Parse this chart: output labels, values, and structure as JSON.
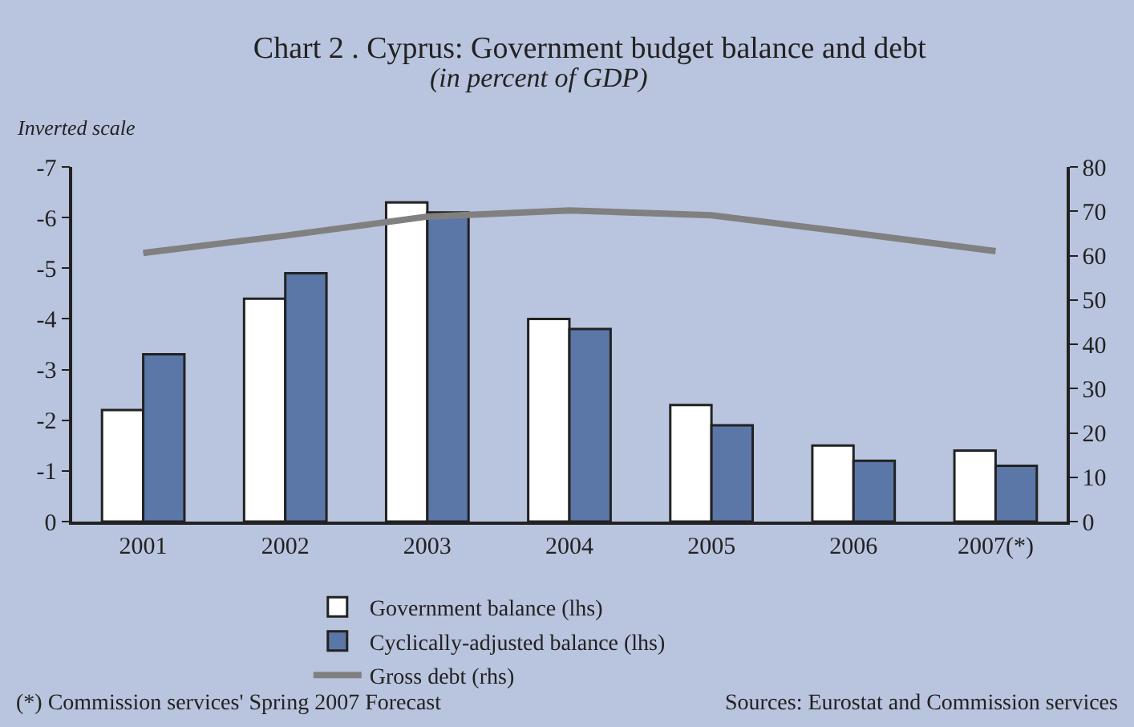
{
  "chart_data": {
    "type": "bar",
    "title": "Chart 2 . Cyprus: Government budget balance and debt",
    "subtitle": "(in percent of GDP)",
    "ylabel": "Inverted scale",
    "categories": [
      "2001",
      "2002",
      "2003",
      "2004",
      "2005",
      "2006",
      "2007(*)"
    ],
    "series": [
      {
        "name": "Government balance (lhs)",
        "color": "#ffffff",
        "values": [
          -2.2,
          -4.4,
          -6.3,
          -4.0,
          -2.3,
          -1.5,
          -1.4
        ]
      },
      {
        "name": "Cyclically-adjusted balance (lhs)",
        "color": "#5b77a8",
        "values": [
          -3.3,
          -4.9,
          -6.1,
          -3.8,
          -1.9,
          -1.2,
          -1.1
        ]
      },
      {
        "name": "Gross debt (rhs)",
        "type": "line",
        "axis": "y2",
        "color": "#808080",
        "values": [
          60.6,
          64.5,
          68.8,
          70.2,
          69.1,
          65.1,
          61.0
        ]
      }
    ],
    "ylim": [
      0,
      -7
    ],
    "yticks": [
      0,
      -1,
      -2,
      -3,
      -4,
      -5,
      -6,
      -7
    ],
    "y2lim": [
      0,
      80
    ],
    "y2ticks": [
      0,
      10,
      20,
      30,
      40,
      50,
      60,
      70,
      80
    ],
    "grid": false,
    "legend": "bottom",
    "marker": "none",
    "annotations": [
      "(*) Commission services' Spring 2007 Forecast",
      "Sources: Eurostat and Commission services"
    ]
  }
}
